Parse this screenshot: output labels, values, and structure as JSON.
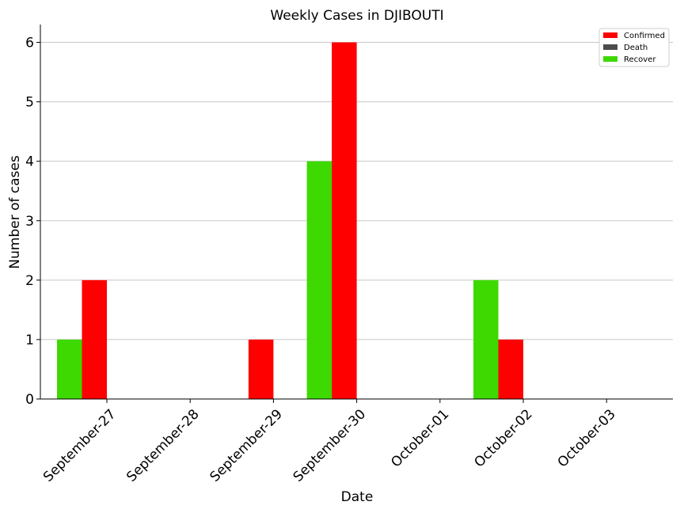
{
  "chart_data": {
    "type": "bar",
    "title": "Weekly Cases in DJIBOUTI",
    "xlabel": "Date",
    "ylabel": "Number of cases",
    "categories": [
      "September-27",
      "September-28",
      "September-29",
      "September-30",
      "October-01",
      "October-02",
      "October-03"
    ],
    "series": [
      {
        "name": "Recover",
        "color": "#3dd900",
        "values": [
          1,
          0,
          0,
          4,
          0,
          2,
          0
        ]
      },
      {
        "name": "Confirmed",
        "color": "#ff0000",
        "values": [
          2,
          0,
          1,
          6,
          0,
          1,
          0
        ]
      },
      {
        "name": "Death",
        "color": "#4d4d4d",
        "values": [
          0,
          0,
          0,
          0,
          0,
          0,
          0
        ]
      }
    ],
    "legend": [
      {
        "name": "Confirmed",
        "color": "#ff0000"
      },
      {
        "name": "Death",
        "color": "#4d4d4d"
      },
      {
        "name": "Recover",
        "color": "#3dd900"
      }
    ],
    "legend_placement": "top-right",
    "ylim": [
      0,
      6.3
    ],
    "yticks": [
      0,
      1,
      2,
      3,
      4,
      5,
      6
    ],
    "grid": "y"
  }
}
